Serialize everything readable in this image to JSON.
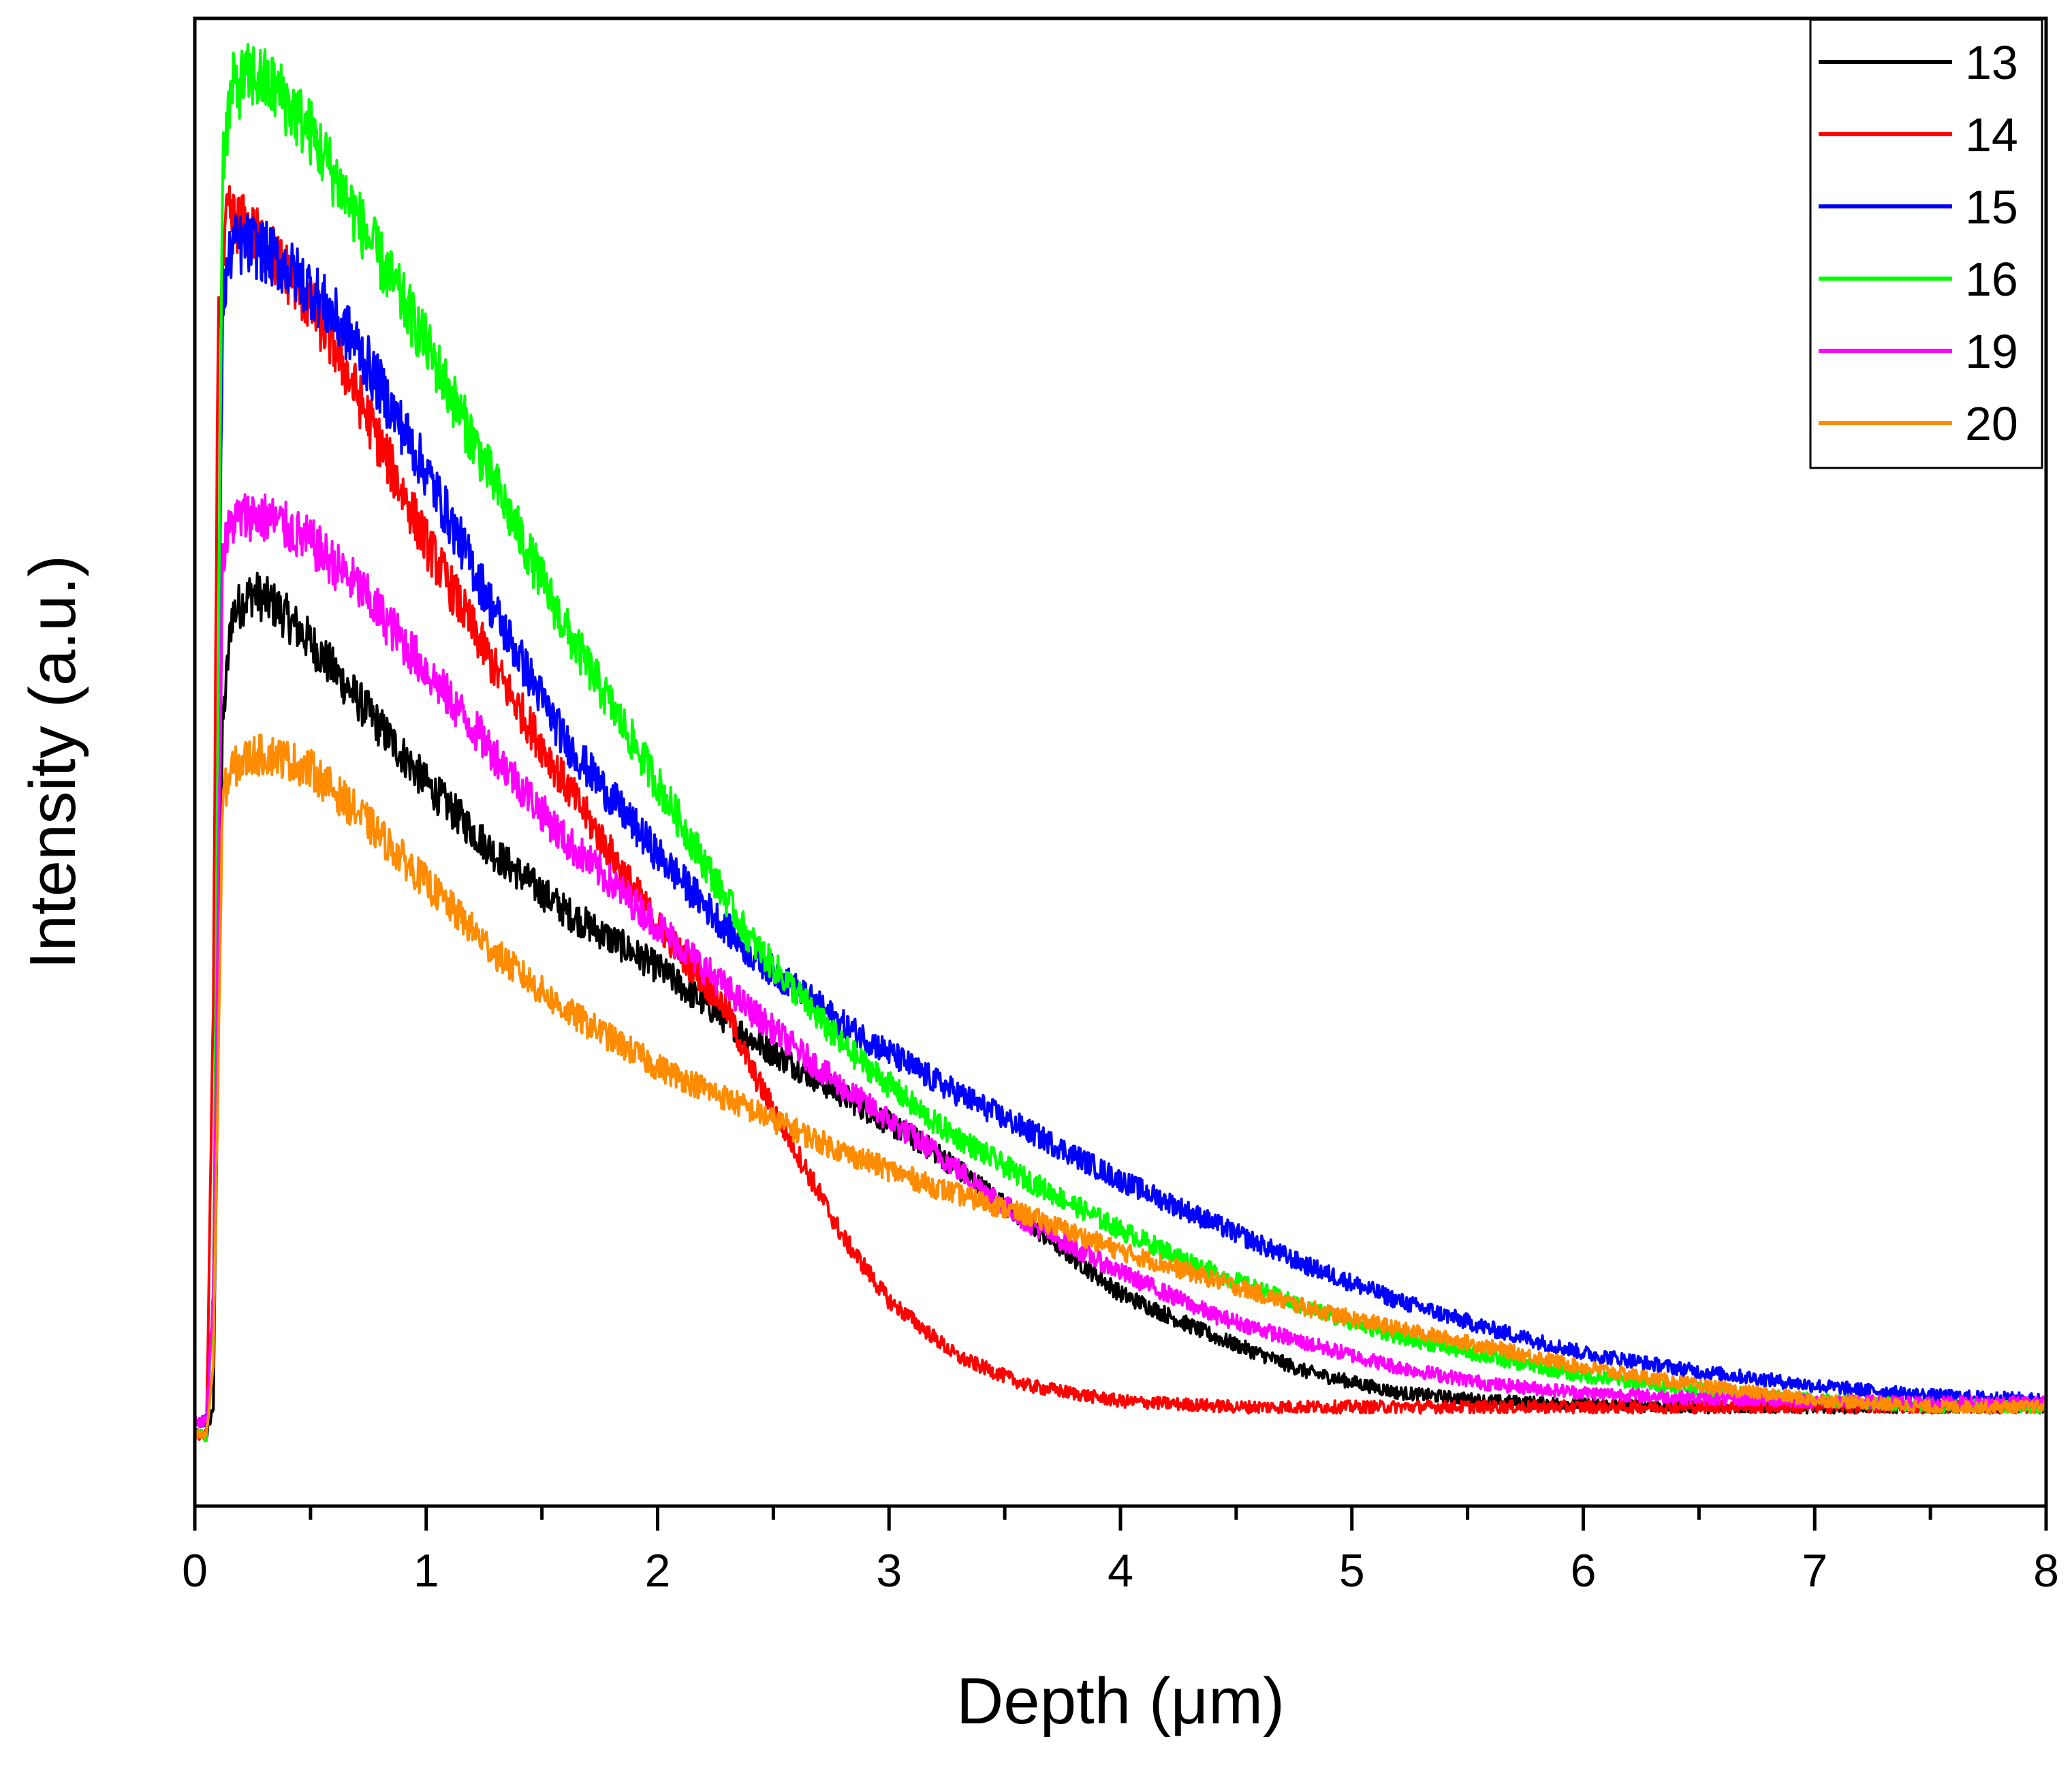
{
  "chart_data": {
    "type": "line",
    "xlabel": "Depth (μm)",
    "ylabel": "Intensity (a.u.)",
    "xlim": [
      0,
      8
    ],
    "ylim": [
      -0.05,
      1.0
    ],
    "x_ticks": [
      "0",
      "1",
      "2",
      "3",
      "4",
      "5",
      "6",
      "7",
      "8"
    ],
    "y_ticks_labeled": false,
    "grid": false,
    "legend_position": "top-right",
    "series": [
      {
        "name": "13",
        "color": "#000000",
        "x": [
          0,
          0.05,
          0.08,
          0.12,
          0.16,
          0.25,
          0.35,
          0.5,
          0.7,
          1.0,
          1.3,
          1.6,
          2.0,
          2.4,
          2.8,
          3.2,
          3.6,
          4.0,
          4.4,
          4.8,
          5.2,
          5.6,
          6.0,
          6.5,
          7.0,
          7.5,
          8.0
        ],
        "y": [
          0.0,
          0.0,
          0.02,
          0.5,
          0.58,
          0.595,
          0.585,
          0.56,
          0.52,
          0.46,
          0.41,
          0.37,
          0.33,
          0.28,
          0.24,
          0.2,
          0.15,
          0.1,
          0.07,
          0.045,
          0.03,
          0.024,
          0.022,
          0.02,
          0.02,
          0.02,
          0.02
        ]
      },
      {
        "name": "14",
        "color": "#ff0000",
        "x": [
          0,
          0.05,
          0.08,
          0.1,
          0.14,
          0.2,
          0.3,
          0.45,
          0.6,
          0.8,
          1.0,
          1.3,
          1.6,
          2.0,
          2.3,
          2.4,
          2.6,
          2.8,
          3.0,
          3.3,
          3.6,
          4.0,
          4.5,
          5.0,
          6.0,
          7.0,
          8.0
        ],
        "y": [
          0.0,
          0.0,
          0.3,
          0.78,
          0.86,
          0.855,
          0.84,
          0.81,
          0.77,
          0.7,
          0.63,
          0.54,
          0.46,
          0.36,
          0.3,
          0.26,
          0.2,
          0.14,
          0.095,
          0.055,
          0.035,
          0.024,
          0.02,
          0.02,
          0.02,
          0.02,
          0.02
        ]
      },
      {
        "name": "15",
        "color": "#0000ff",
        "x": [
          0,
          0.05,
          0.08,
          0.12,
          0.16,
          0.25,
          0.35,
          0.5,
          0.7,
          1.0,
          1.3,
          1.6,
          2.0,
          2.4,
          2.8,
          3.2,
          3.6,
          4.0,
          4.4,
          4.8,
          5.2,
          5.6,
          6.0,
          6.5,
          7.0,
          7.5,
          8.0
        ],
        "y": [
          0.01,
          0.01,
          0.1,
          0.8,
          0.84,
          0.84,
          0.83,
          0.81,
          0.77,
          0.68,
          0.58,
          0.49,
          0.41,
          0.34,
          0.29,
          0.25,
          0.215,
          0.18,
          0.15,
          0.12,
          0.095,
          0.075,
          0.058,
          0.045,
          0.035,
          0.028,
          0.025
        ]
      },
      {
        "name": "16",
        "color": "#00ff00",
        "x": [
          0,
          0.05,
          0.08,
          0.12,
          0.16,
          0.25,
          0.35,
          0.5,
          0.7,
          1.0,
          1.3,
          1.6,
          2.0,
          2.4,
          2.8,
          3.2,
          3.6,
          4.0,
          4.4,
          4.8,
          5.2,
          5.6,
          6.0,
          6.5,
          7.0,
          7.5,
          8.0
        ],
        "y": [
          0.0,
          0.0,
          0.1,
          0.9,
          0.95,
          0.96,
          0.95,
          0.92,
          0.86,
          0.77,
          0.67,
          0.57,
          0.46,
          0.35,
          0.275,
          0.22,
          0.18,
          0.145,
          0.115,
          0.09,
          0.07,
          0.055,
          0.042,
          0.032,
          0.025,
          0.021,
          0.02
        ]
      },
      {
        "name": "19",
        "color": "#ff00ff",
        "x": [
          0,
          0.05,
          0.08,
          0.12,
          0.16,
          0.25,
          0.35,
          0.5,
          0.7,
          1.0,
          1.3,
          1.6,
          2.0,
          2.4,
          2.8,
          3.2,
          3.6,
          4.0,
          4.4,
          4.8,
          5.2,
          5.6,
          6.0,
          6.5,
          7.0,
          7.5,
          8.0
        ],
        "y": [
          0.01,
          0.01,
          0.1,
          0.62,
          0.645,
          0.65,
          0.645,
          0.63,
          0.6,
          0.54,
          0.48,
          0.42,
          0.36,
          0.3,
          0.245,
          0.2,
          0.15,
          0.115,
          0.085,
          0.065,
          0.048,
          0.036,
          0.03,
          0.026,
          0.024,
          0.023,
          0.023
        ]
      },
      {
        "name": "20",
        "color": "#ff8c00",
        "x": [
          0,
          0.05,
          0.08,
          0.12,
          0.16,
          0.25,
          0.35,
          0.5,
          0.7,
          1.0,
          1.3,
          1.6,
          2.0,
          2.4,
          2.8,
          3.2,
          3.6,
          4.0,
          4.4,
          4.8,
          5.2,
          5.6,
          6.0,
          6.5,
          7.0,
          7.5,
          8.0
        ],
        "y": [
          0.0,
          0.0,
          0.05,
          0.45,
          0.47,
          0.48,
          0.48,
          0.47,
          0.44,
          0.39,
          0.34,
          0.3,
          0.26,
          0.23,
          0.2,
          0.175,
          0.155,
          0.13,
          0.11,
          0.09,
          0.075,
          0.062,
          0.048,
          0.035,
          0.025,
          0.02,
          0.02
        ]
      }
    ]
  }
}
